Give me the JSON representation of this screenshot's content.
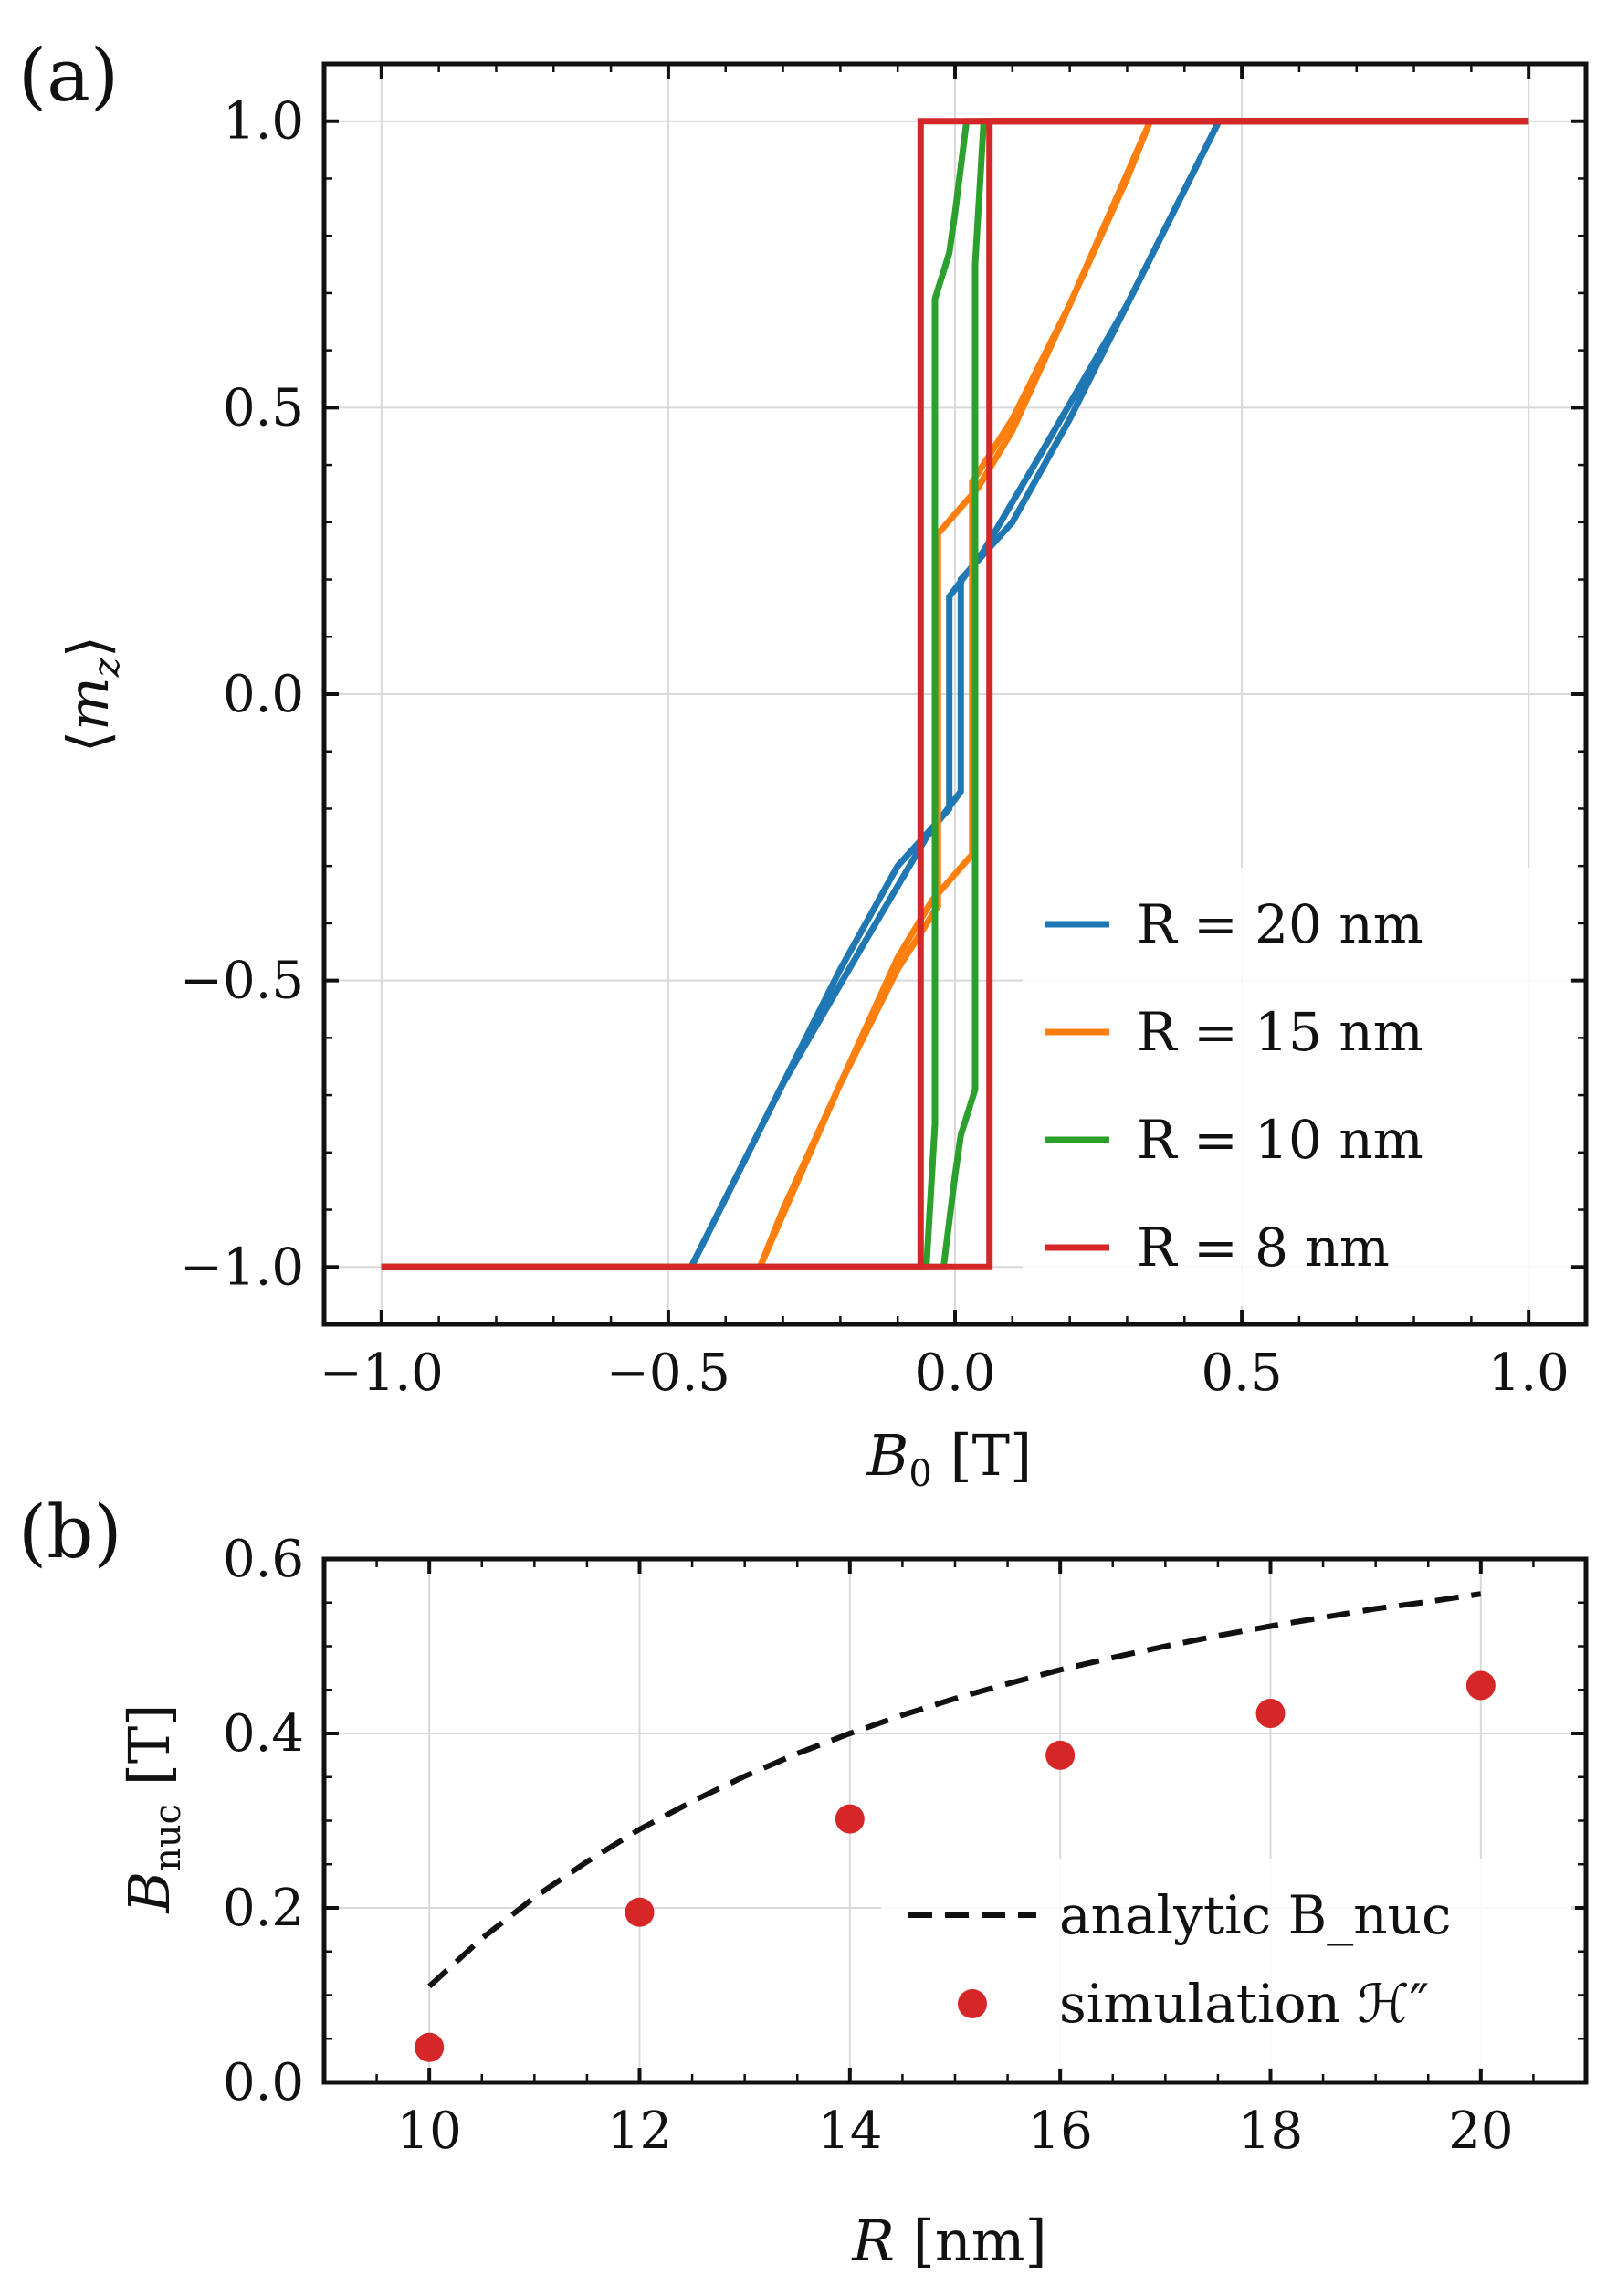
{
  "chart_data": [
    {
      "id": "a",
      "panel_label": "(a)",
      "type": "line",
      "title": "",
      "xlabel": "B₀ [T]",
      "ylabel": "⟨m_z⟩",
      "xlim": [
        -1.1,
        1.1
      ],
      "ylim": [
        -1.1,
        1.1
      ],
      "xticks": [
        -1.0,
        -0.5,
        0.0,
        0.5,
        1.0
      ],
      "xtick_labels": [
        "−1.0",
        "−0.5",
        "0.0",
        "0.5",
        "1.0"
      ],
      "yticks": [
        -1.0,
        -0.5,
        0.0,
        0.5,
        1.0
      ],
      "ytick_labels": [
        "−1.0",
        "−0.5",
        "0.0",
        "0.5",
        "1.0"
      ],
      "grid": true,
      "legend_position": "bottom-right",
      "series": [
        {
          "name": "R = 20 nm",
          "color": "#1f77b4",
          "branches": [
            {
              "x": [
                -1.0,
                -0.46,
                -0.3,
                -0.15,
                -0.05,
                0.01,
                0.01,
                0.1,
                0.2,
                0.3,
                0.4,
                0.46,
                1.0
              ],
              "y": [
                -1.0,
                -1.0,
                -0.68,
                -0.42,
                -0.25,
                -0.17,
                0.2,
                0.3,
                0.48,
                0.68,
                0.88,
                1.0,
                1.0
              ]
            },
            {
              "x": [
                1.0,
                0.46,
                0.3,
                0.15,
                0.05,
                -0.01,
                -0.01,
                -0.1,
                -0.2,
                -0.3,
                -0.4,
                -0.46,
                -1.0
              ],
              "y": [
                1.0,
                1.0,
                0.68,
                0.42,
                0.25,
                0.17,
                -0.2,
                -0.3,
                -0.48,
                -0.68,
                -0.88,
                -1.0,
                -1.0
              ]
            }
          ]
        },
        {
          "name": "R = 15 nm",
          "color": "#ff7f0e",
          "branches": [
            {
              "x": [
                -1.0,
                -0.34,
                -0.2,
                -0.1,
                -0.04,
                0.03,
                0.03,
                0.1,
                0.2,
                0.3,
                0.34,
                1.0
              ],
              "y": [
                -1.0,
                -1.0,
                -0.68,
                -0.46,
                -0.36,
                -0.28,
                0.37,
                0.48,
                0.68,
                0.9,
                1.0,
                1.0
              ]
            },
            {
              "x": [
                1.0,
                0.34,
                0.2,
                0.1,
                0.04,
                -0.03,
                -0.03,
                -0.1,
                -0.2,
                -0.3,
                -0.34,
                -1.0
              ],
              "y": [
                1.0,
                1.0,
                0.68,
                0.46,
                0.36,
                0.28,
                -0.37,
                -0.48,
                -0.68,
                -0.9,
                -1.0,
                -1.0
              ]
            }
          ]
        },
        {
          "name": "R = 10 nm",
          "color": "#2ca02c",
          "branches": [
            {
              "x": [
                -1.0,
                -0.02,
                -0.01,
                0.0,
                0.01,
                0.035,
                0.035,
                0.05,
                1.0
              ],
              "y": [
                -1.0,
                -1.0,
                -0.92,
                -0.84,
                -0.77,
                -0.69,
                0.75,
                1.0,
                1.0
              ]
            },
            {
              "x": [
                1.0,
                0.02,
                0.01,
                0.0,
                -0.01,
                -0.035,
                -0.035,
                -0.05,
                -1.0
              ],
              "y": [
                1.0,
                1.0,
                0.92,
                0.84,
                0.77,
                0.69,
                -0.75,
                -1.0,
                -1.0
              ]
            }
          ]
        },
        {
          "name": "R = 8 nm",
          "color": "#d62728",
          "branches": [
            {
              "x": [
                -1.0,
                0.06,
                0.06,
                1.0
              ],
              "y": [
                -1.0,
                -1.0,
                1.0,
                1.0
              ]
            },
            {
              "x": [
                1.0,
                -0.06,
                -0.06,
                -1.0
              ],
              "y": [
                1.0,
                1.0,
                -1.0,
                -1.0
              ]
            }
          ]
        }
      ]
    },
    {
      "id": "b",
      "panel_label": "(b)",
      "type": "line+scatter",
      "title": "",
      "xlabel": "R [nm]",
      "ylabel": "B_nuc [T]",
      "xlim": [
        9,
        21
      ],
      "ylim": [
        0,
        0.6
      ],
      "xticks": [
        10,
        12,
        14,
        16,
        18,
        20
      ],
      "xtick_labels": [
        "10",
        "12",
        "14",
        "16",
        "18",
        "20"
      ],
      "yticks": [
        0.0,
        0.2,
        0.4,
        0.6
      ],
      "ytick_labels": [
        "0.0",
        "0.2",
        "0.4",
        "0.6"
      ],
      "grid": true,
      "legend_position": "bottom-right",
      "series": [
        {
          "name": "analytic B_nuc",
          "style": "dashed",
          "color": "#111111",
          "x": [
            10,
            10.5,
            11,
            11.5,
            12,
            12.5,
            13,
            13.5,
            14,
            14.5,
            15,
            15.5,
            16,
            16.5,
            17,
            17.5,
            18,
            18.5,
            19,
            19.5,
            20
          ],
          "y": [
            0.11,
            0.165,
            0.212,
            0.253,
            0.29,
            0.322,
            0.351,
            0.377,
            0.4,
            0.421,
            0.44,
            0.457,
            0.473,
            0.487,
            0.5,
            0.512,
            0.523,
            0.533,
            0.543,
            0.551,
            0.56
          ]
        },
        {
          "name": "simulation ℋ″",
          "style": "markers",
          "color": "#d62728",
          "x": [
            10,
            12,
            14,
            16,
            18,
            20
          ],
          "y": [
            0.04,
            0.195,
            0.302,
            0.375,
            0.423,
            0.455
          ]
        }
      ]
    }
  ]
}
